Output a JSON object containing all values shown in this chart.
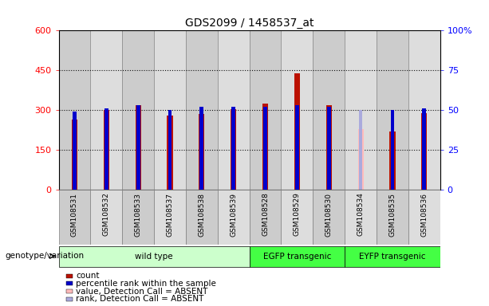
{
  "title": "GDS2099 / 1458537_at",
  "samples": [
    "GSM108531",
    "GSM108532",
    "GSM108533",
    "GSM108537",
    "GSM108538",
    "GSM108539",
    "GSM108528",
    "GSM108529",
    "GSM108530",
    "GSM108534",
    "GSM108535",
    "GSM108536"
  ],
  "count_values": [
    265,
    300,
    320,
    280,
    285,
    305,
    325,
    440,
    320,
    null,
    220,
    290
  ],
  "rank_values": [
    49,
    51,
    53,
    50,
    52,
    52,
    52,
    53,
    52,
    null,
    50,
    51
  ],
  "absent_count": [
    null,
    null,
    null,
    null,
    null,
    null,
    null,
    null,
    null,
    230,
    null,
    null
  ],
  "absent_rank": [
    null,
    null,
    null,
    null,
    null,
    null,
    null,
    null,
    null,
    50,
    null,
    null
  ],
  "group_boundaries": [
    {
      "label": "wild type",
      "start": 0,
      "end": 5,
      "color": "#ccffcc"
    },
    {
      "label": "EGFP transgenic",
      "start": 6,
      "end": 8,
      "color": "#44ff44"
    },
    {
      "label": "EYFP transgenic",
      "start": 9,
      "end": 11,
      "color": "#44ff44"
    }
  ],
  "ylim_left": [
    0,
    600
  ],
  "ylim_right": [
    0,
    100
  ],
  "yticks_left": [
    0,
    150,
    300,
    450,
    600
  ],
  "yticks_right": [
    0,
    25,
    50,
    75,
    100
  ],
  "yticklabels_right": [
    "0",
    "25",
    "50",
    "75",
    "100%"
  ],
  "bar_color": "#bb1100",
  "rank_color": "#0000cc",
  "absent_bar_color": "#ffbbbb",
  "absent_rank_color": "#aaaadd",
  "bg_color": "#dddddd",
  "col_bg_even": "#cccccc",
  "col_bg_odd": "#dddddd",
  "grid_color": "#111111",
  "bar_width": 0.18,
  "rank_sq_size": 0.12,
  "legend_items": [
    {
      "color": "#bb1100",
      "label": "count"
    },
    {
      "color": "#0000cc",
      "label": "percentile rank within the sample"
    },
    {
      "color": "#ffbbbb",
      "label": "value, Detection Call = ABSENT"
    },
    {
      "color": "#aaaadd",
      "label": "rank, Detection Call = ABSENT"
    }
  ]
}
